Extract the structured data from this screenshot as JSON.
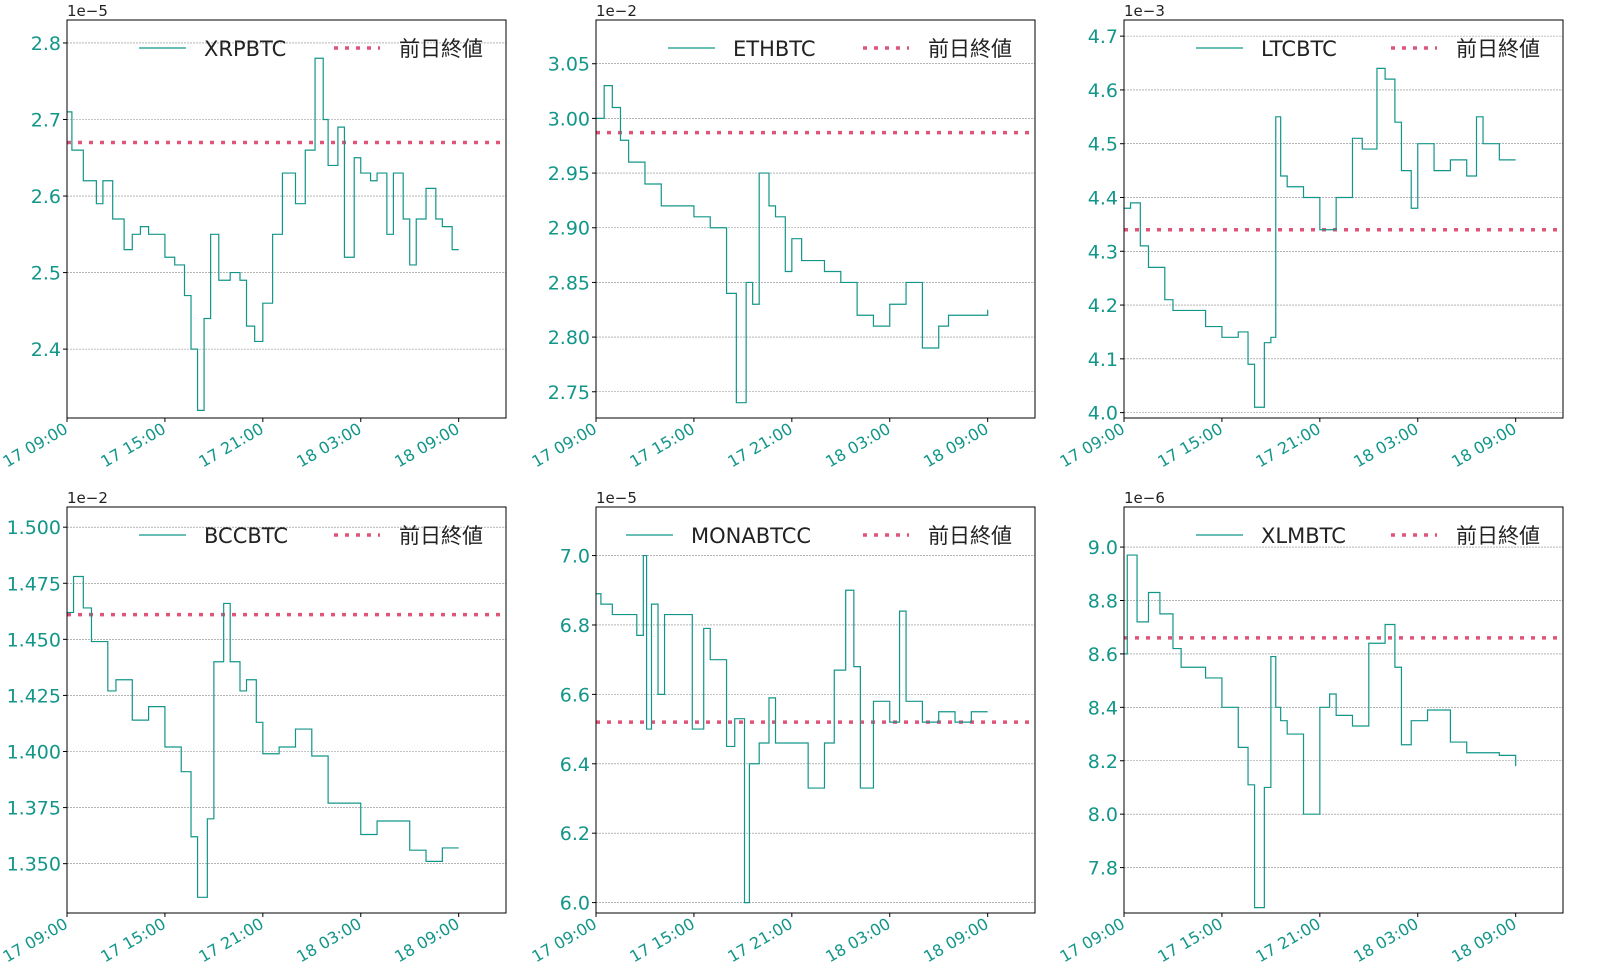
{
  "colors": {
    "series": "#13968a",
    "tick_label": "#13968a",
    "ref_line": "#e0547a",
    "grid": "#888888",
    "axis": "#000000",
    "legend_text": "#222222"
  },
  "x_ticks": [
    "17 09:00",
    "17 15:00",
    "17 21:00",
    "18 03:00",
    "18 09:00"
  ],
  "chart_data": [
    {
      "type": "line",
      "title": "",
      "legend": [
        "XRPBTC",
        "前日終値"
      ],
      "offset_label": "1e−5",
      "yticks": [
        "2.4",
        "2.5",
        "2.6",
        "2.7",
        "2.8"
      ],
      "ylim": [
        2.31,
        2.83
      ],
      "prev_close": 2.67,
      "x_hours": [
        0,
        0.3,
        0.6,
        1,
        1.8,
        2.2,
        2.8,
        3.5,
        4,
        4.5,
        5,
        6,
        6.6,
        7.2,
        7.6,
        8,
        8.4,
        8.8,
        9.3,
        10,
        10.6,
        11,
        11.5,
        12,
        12.6,
        13.2,
        14,
        14.6,
        15.2,
        15.7,
        16,
        16.6,
        17,
        17.6,
        18,
        18.6,
        19,
        19.6,
        20,
        20.6,
        21,
        21.4,
        22,
        22.6,
        23,
        23.6,
        24
      ],
      "values": [
        2.71,
        2.66,
        2.66,
        2.62,
        2.59,
        2.62,
        2.57,
        2.53,
        2.55,
        2.56,
        2.55,
        2.52,
        2.51,
        2.47,
        2.4,
        2.32,
        2.44,
        2.55,
        2.49,
        2.5,
        2.49,
        2.43,
        2.41,
        2.46,
        2.55,
        2.63,
        2.59,
        2.66,
        2.78,
        2.7,
        2.64,
        2.69,
        2.52,
        2.65,
        2.63,
        2.62,
        2.63,
        2.55,
        2.63,
        2.57,
        2.51,
        2.57,
        2.61,
        2.57,
        2.56,
        2.53,
        2.53
      ],
      "series_end_hour": 24
    },
    {
      "type": "line",
      "legend": [
        "ETHBTC",
        "前日終値"
      ],
      "offset_label": "1e−2",
      "yticks": [
        "2.75",
        "2.80",
        "2.85",
        "2.90",
        "2.95",
        "3.00",
        "3.05"
      ],
      "ylim": [
        2.726,
        3.09
      ],
      "prev_close": 2.987,
      "x_hours": [
        0,
        0.5,
        1,
        1.5,
        2,
        3,
        4,
        5,
        6,
        7,
        8,
        8.6,
        9.2,
        9.6,
        10,
        10.6,
        11,
        11.6,
        12,
        12.6,
        13,
        14,
        15,
        16,
        17,
        18,
        19,
        20,
        21,
        21.6,
        22,
        23,
        23.6,
        24
      ],
      "values": [
        3.0,
        3.03,
        3.01,
        2.98,
        2.96,
        2.94,
        2.92,
        2.92,
        2.91,
        2.9,
        2.84,
        2.74,
        2.85,
        2.83,
        2.95,
        2.92,
        2.91,
        2.86,
        2.89,
        2.87,
        2.87,
        2.86,
        2.85,
        2.82,
        2.81,
        2.83,
        2.85,
        2.79,
        2.81,
        2.82,
        2.82,
        2.82,
        2.82,
        2.825
      ]
    },
    {
      "type": "line",
      "legend": [
        "LTCBTC",
        "前日終値"
      ],
      "offset_label": "1e−3",
      "yticks": [
        "4.0",
        "4.1",
        "4.2",
        "4.3",
        "4.4",
        "4.5",
        "4.6",
        "4.7"
      ],
      "ylim": [
        3.99,
        4.73
      ],
      "prev_close": 4.34,
      "x_hours": [
        0,
        0.4,
        1,
        1.5,
        2.5,
        3,
        4,
        5,
        6,
        7,
        7.6,
        8,
        8.6,
        9,
        9.3,
        9.6,
        10,
        11,
        12,
        13,
        14,
        14.6,
        15.5,
        16,
        16.6,
        17,
        17.6,
        18,
        19,
        20,
        21,
        21.6,
        22,
        23,
        24
      ],
      "values": [
        4.38,
        4.39,
        4.31,
        4.27,
        4.21,
        4.19,
        4.19,
        4.16,
        4.14,
        4.15,
        4.09,
        4.01,
        4.13,
        4.14,
        4.55,
        4.44,
        4.42,
        4.4,
        4.34,
        4.4,
        4.51,
        4.49,
        4.64,
        4.62,
        4.54,
        4.45,
        4.38,
        4.5,
        4.45,
        4.47,
        4.44,
        4.55,
        4.5,
        4.47,
        4.47
      ]
    },
    {
      "type": "line",
      "legend": [
        "BCCBTC",
        "前日終値"
      ],
      "offset_label": "1e−2",
      "yticks": [
        "1.350",
        "1.375",
        "1.400",
        "1.425",
        "1.450",
        "1.475",
        "1.500"
      ],
      "ylim": [
        1.328,
        1.509
      ],
      "prev_close": 1.461,
      "x_hours": [
        0,
        0.4,
        1,
        1.5,
        2.5,
        3,
        4,
        5,
        6,
        7,
        7.6,
        8,
        8.6,
        9,
        9.6,
        10,
        10.6,
        11,
        11.6,
        12,
        13,
        14,
        15,
        16,
        17,
        18,
        19,
        20,
        21,
        22,
        23,
        24
      ],
      "values": [
        1.462,
        1.478,
        1.464,
        1.449,
        1.427,
        1.432,
        1.414,
        1.42,
        1.402,
        1.391,
        1.362,
        1.335,
        1.37,
        1.44,
        1.466,
        1.44,
        1.427,
        1.432,
        1.413,
        1.399,
        1.402,
        1.41,
        1.398,
        1.377,
        1.377,
        1.363,
        1.369,
        1.369,
        1.356,
        1.351,
        1.357,
        1.357
      ]
    },
    {
      "type": "line",
      "legend": [
        "MONABTCC",
        "前日終値"
      ],
      "offset_label": "1e−5",
      "yticks": [
        "6.0",
        "6.2",
        "6.4",
        "6.6",
        "6.8",
        "7.0"
      ],
      "ylim": [
        5.97,
        7.14
      ],
      "prev_close": 6.52,
      "x_hours": [
        0,
        0.3,
        1,
        2,
        2.5,
        2.9,
        3.1,
        3.4,
        3.8,
        4.2,
        5.9,
        6.6,
        7,
        8,
        8.5,
        9.1,
        9.4,
        10,
        10.6,
        11,
        12,
        13,
        14,
        14.6,
        15.3,
        15.8,
        16.2,
        17,
        18,
        18.6,
        19,
        20,
        21,
        22,
        23,
        24
      ],
      "values": [
        6.89,
        6.86,
        6.83,
        6.83,
        6.77,
        7.0,
        6.5,
        6.86,
        6.6,
        6.83,
        6.5,
        6.79,
        6.7,
        6.45,
        6.53,
        6.0,
        6.4,
        6.46,
        6.59,
        6.46,
        6.46,
        6.33,
        6.46,
        6.67,
        6.9,
        6.68,
        6.33,
        6.58,
        6.52,
        6.84,
        6.58,
        6.52,
        6.55,
        6.52,
        6.55,
        6.55
      ]
    },
    {
      "type": "line",
      "legend": [
        "XLMBTC",
        "前日終値"
      ],
      "offset_label": "1e−6",
      "yticks": [
        "7.8",
        "8.0",
        "8.2",
        "8.4",
        "8.6",
        "8.8",
        "9.0"
      ],
      "ylim": [
        7.63,
        9.15
      ],
      "prev_close": 8.66,
      "x_hours": [
        0,
        0.2,
        0.8,
        1.5,
        2.2,
        3,
        3.5,
        4,
        5,
        6,
        7,
        7.6,
        8,
        8.6,
        9,
        9.3,
        9.6,
        10,
        11,
        12,
        12.6,
        13,
        14,
        15,
        16,
        16.6,
        17,
        17.6,
        18,
        18.6,
        19,
        20,
        21,
        22,
        23,
        24
      ],
      "values": [
        8.6,
        8.97,
        8.72,
        8.83,
        8.75,
        8.62,
        8.55,
        8.55,
        8.51,
        8.4,
        8.25,
        8.11,
        7.65,
        8.1,
        8.59,
        8.4,
        8.35,
        8.3,
        8.0,
        8.4,
        8.45,
        8.37,
        8.33,
        8.64,
        8.71,
        8.55,
        8.26,
        8.35,
        8.35,
        8.39,
        8.39,
        8.27,
        8.23,
        8.23,
        8.22,
        8.18
      ]
    }
  ]
}
